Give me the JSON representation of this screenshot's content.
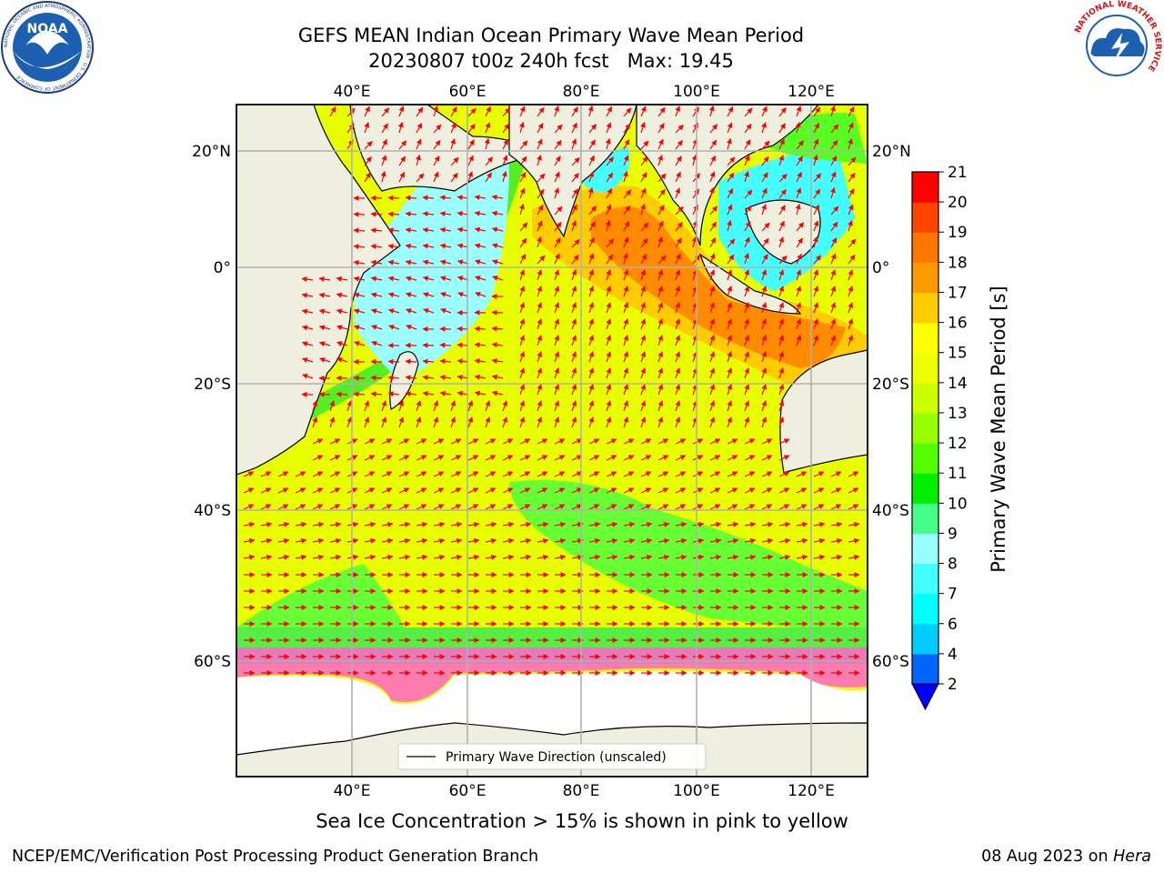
{
  "header": {
    "title": "GEFS MEAN Indian Ocean Primary Wave Mean Period",
    "run": "20230807 t00z 240h fcst",
    "max_label": "Max: 19.45"
  },
  "logos": {
    "noaa": {
      "name": "noaa-logo",
      "text": "NOAA",
      "ring_text": "NATIONAL OCEANIC AND ATMOSPHERIC ADMINISTRATION · U.S. DEPARTMENT OF COMMERCE"
    },
    "nws": {
      "name": "nws-logo",
      "ring_text": "NATIONAL WEATHER SERVICE"
    }
  },
  "map": {
    "lon_labels": [
      "40°E",
      "60°E",
      "80°E",
      "100°E",
      "120°E"
    ],
    "lat_labels": [
      "20°N",
      "0°",
      "20°S",
      "40°S",
      "60°S"
    ],
    "legend_label": "Primary Wave Direction (unscaled)",
    "colors": {
      "land": "#efefdf",
      "ice_pink": "#ff66cc",
      "arrow": "#ff0000",
      "coast": "#000000",
      "grid": "#b0b0b0"
    }
  },
  "colorbar": {
    "label": "Primary Wave Mean Period [s]",
    "ticks": [
      "2",
      "4",
      "6",
      "7",
      "8",
      "9",
      "10",
      "11",
      "12",
      "13",
      "14",
      "15",
      "16",
      "17",
      "18",
      "19",
      "20",
      "21"
    ],
    "colors": [
      "#0064ff",
      "#00ccff",
      "#00ffff",
      "#44ffff",
      "#99ffff",
      "#44ff88",
      "#00ee00",
      "#55ff00",
      "#99ff00",
      "#ccff00",
      "#eeff00",
      "#ffff00",
      "#ffcc00",
      "#ff9900",
      "#ff7700",
      "#ff4400",
      "#ff0000"
    ],
    "under_color": "#0000ff"
  },
  "footer": {
    "note": "Sea Ice Concentration > 15% is shown in pink to yellow",
    "credit": "NCEP/EMC/Verification Post Processing Product Generation Branch",
    "date": "08 Aug 2023 on",
    "machine": "Hera"
  }
}
